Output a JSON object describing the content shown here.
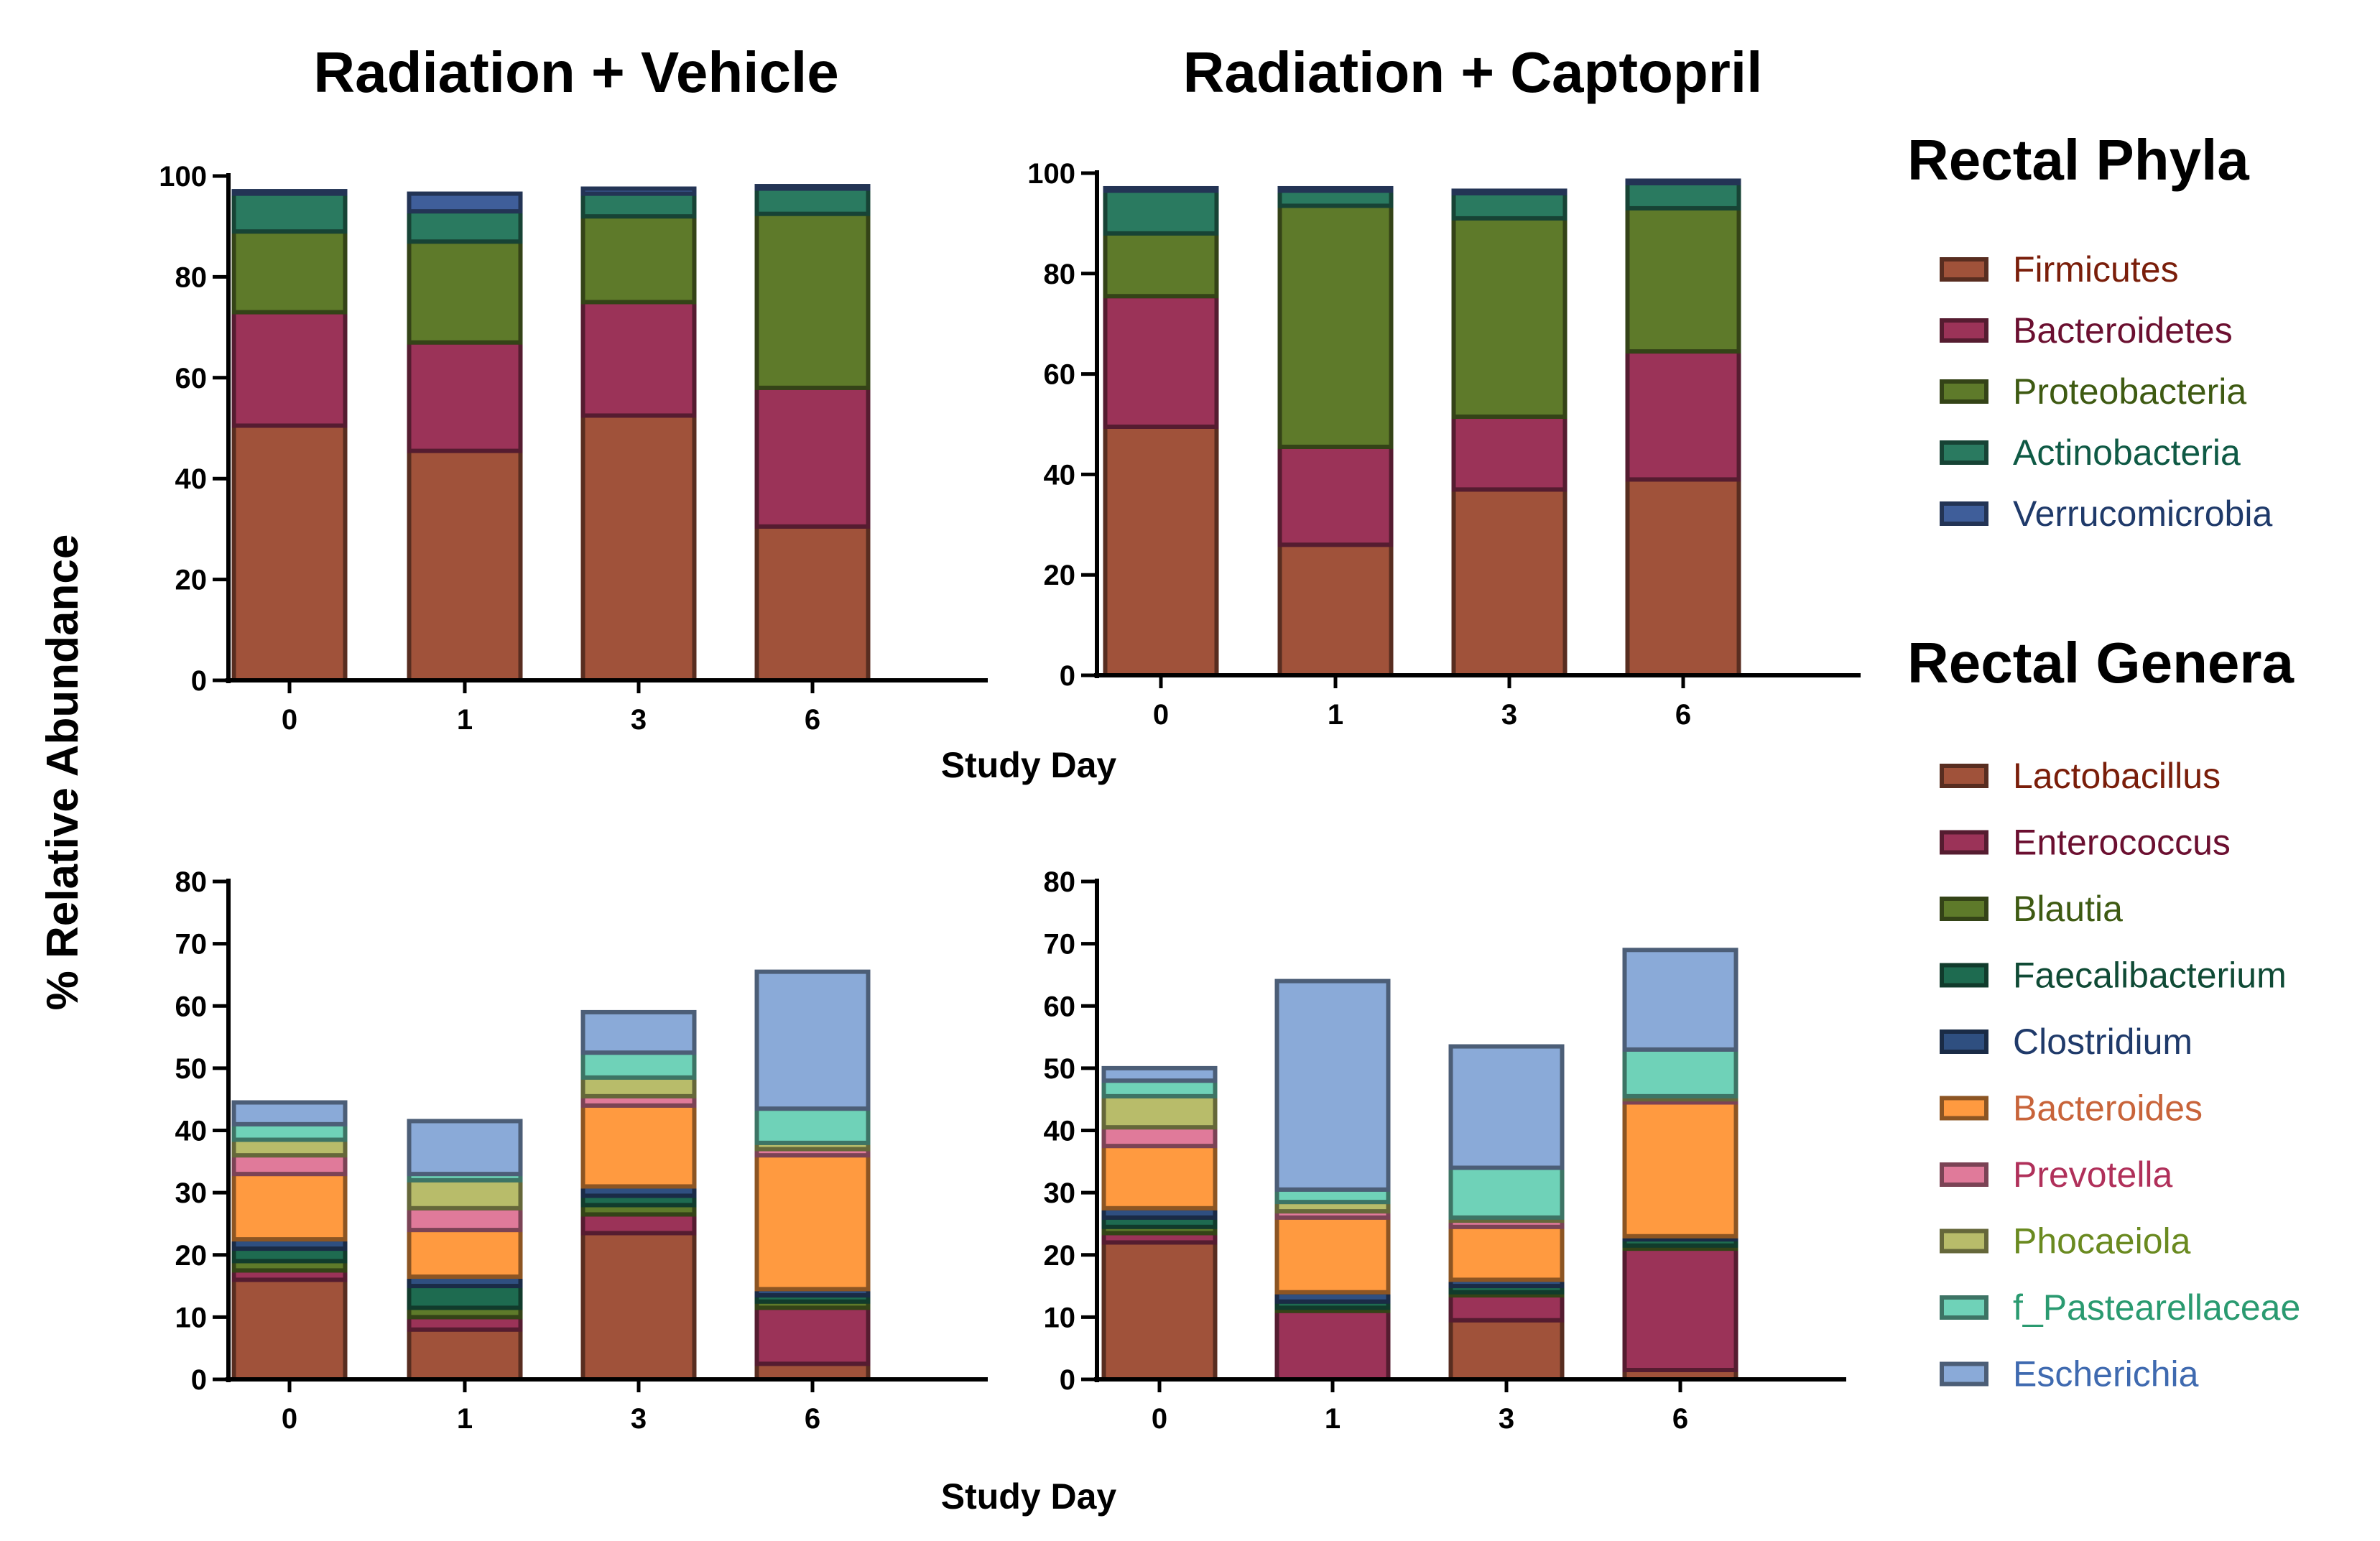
{
  "figure": {
    "y_axis_title": "% Relative Abundance",
    "x_axis_title_top": "Study Day",
    "x_axis_title_bottom": "Study Day"
  },
  "legends": {
    "phyla": {
      "title": "Rectal Phyla",
      "items": [
        {
          "name": "Firmicutes",
          "fill": "#A0523A",
          "text_color": "#7A1E0A"
        },
        {
          "name": "Bacteroidetes",
          "fill": "#9B3358",
          "text_color": "#6B0F30"
        },
        {
          "name": "Proteobacteria",
          "fill": "#5E7A2A",
          "text_color": "#3E5A12"
        },
        {
          "name": "Actinobacteria",
          "fill": "#2A7A60",
          "text_color": "#0F5A45"
        },
        {
          "name": "Verrucomicrobia",
          "fill": "#3F5E9A",
          "text_color": "#1F3A6A"
        }
      ]
    },
    "genera": {
      "title": "Rectal Genera",
      "items": [
        {
          "name": "Lactobacillus",
          "fill": "#A0523A",
          "text_color": "#7A1E0A"
        },
        {
          "name": "Enterococcus",
          "fill": "#9B3358",
          "text_color": "#6B0F30"
        },
        {
          "name": "Blautia",
          "fill": "#5E7A2A",
          "text_color": "#3E5A12"
        },
        {
          "name": "Faecalibacterium",
          "fill": "#1E6B50",
          "text_color": "#0F4A35"
        },
        {
          "name": "Clostridium",
          "fill": "#2F4F80",
          "text_color": "#1F3A6A"
        },
        {
          "name": "Bacteroides",
          "fill": "#FF9A40",
          "text_color": "#C8643A"
        },
        {
          "name": "Prevotella",
          "fill": "#E07A9A",
          "text_color": "#B0305A"
        },
        {
          "name": "Phocaeiola",
          "fill": "#B8BC6A",
          "text_color": "#6A8A20"
        },
        {
          "name": "f_Pastearellaceae",
          "fill": "#6FD2B8",
          "text_color": "#2A9A70"
        },
        {
          "name": "Escherichia",
          "fill": "#8AAAD8",
          "text_color": "#3F6AB0"
        }
      ]
    }
  },
  "chart_data": [
    {
      "type": "bar",
      "stacked": true,
      "title": "Radiation + Vehicle",
      "xlabel": "",
      "ylabel": "% Relative Abundance",
      "categories": [
        "0",
        "1",
        "3",
        "6"
      ],
      "ylim": [
        0,
        100
      ],
      "yticks": [
        "0",
        "20",
        "40",
        "60",
        "80",
        "100"
      ],
      "series": [
        {
          "name": "Firmicutes",
          "values": [
            50.5,
            45.5,
            52.5,
            30.5
          ]
        },
        {
          "name": "Bacteroidetes",
          "values": [
            22.5,
            21.5,
            22.5,
            27.5
          ]
        },
        {
          "name": "Proteobacteria",
          "values": [
            16.0,
            20.0,
            17.0,
            34.5
          ]
        },
        {
          "name": "Actinobacteria",
          "values": [
            7.5,
            6.0,
            4.5,
            5.0
          ]
        },
        {
          "name": "Verrucomicrobia",
          "values": [
            0.5,
            3.5,
            1.0,
            0.5
          ]
        }
      ]
    },
    {
      "type": "bar",
      "stacked": true,
      "title": "Radiation + Captopril",
      "xlabel": "",
      "ylabel": "",
      "categories": [
        "0",
        "1",
        "3",
        "6"
      ],
      "ylim": [
        0,
        100
      ],
      "yticks": [
        "0",
        "20",
        "40",
        "60",
        "80",
        "100"
      ],
      "series": [
        {
          "name": "Firmicutes",
          "values": [
            49.5,
            26.0,
            37.0,
            39.0
          ]
        },
        {
          "name": "Bacteroidetes",
          "values": [
            26.0,
            19.5,
            14.5,
            25.5
          ]
        },
        {
          "name": "Proteobacteria",
          "values": [
            12.5,
            48.0,
            39.5,
            28.5
          ]
        },
        {
          "name": "Actinobacteria",
          "values": [
            8.5,
            3.0,
            5.0,
            5.0
          ]
        },
        {
          "name": "Verrucomicrobia",
          "values": [
            0.5,
            0.5,
            0.5,
            0.5
          ]
        }
      ]
    },
    {
      "type": "bar",
      "stacked": true,
      "title": "",
      "xlabel": "Study Day",
      "ylabel": "% Relative Abundance",
      "categories": [
        "0",
        "1",
        "3",
        "6"
      ],
      "ylim": [
        0,
        80
      ],
      "yticks": [
        "0",
        "10",
        "20",
        "30",
        "40",
        "50",
        "60",
        "70",
        "80"
      ],
      "series": [
        {
          "name": "Lactobacillus",
          "values": [
            16.0,
            8.0,
            23.5,
            2.5
          ]
        },
        {
          "name": "Enterococcus",
          "values": [
            1.5,
            2.0,
            3.0,
            9.0
          ]
        },
        {
          "name": "Blautia",
          "values": [
            1.5,
            1.5,
            1.5,
            1.0
          ]
        },
        {
          "name": "Faecalibacterium",
          "values": [
            2.0,
            3.5,
            1.5,
            1.0
          ]
        },
        {
          "name": "Clostridium",
          "values": [
            1.5,
            1.5,
            1.5,
            1.0
          ]
        },
        {
          "name": "Bacteroides",
          "values": [
            10.5,
            7.5,
            13.0,
            21.5
          ]
        },
        {
          "name": "Prevotella",
          "values": [
            3.0,
            3.5,
            1.5,
            1.0
          ]
        },
        {
          "name": "Phocaeiola",
          "values": [
            2.5,
            4.5,
            3.0,
            1.0
          ]
        },
        {
          "name": "f_Pastearellaceae",
          "values": [
            2.5,
            1.0,
            4.0,
            5.5
          ]
        },
        {
          "name": "Escherichia",
          "values": [
            3.5,
            8.5,
            6.5,
            22.0
          ]
        }
      ]
    },
    {
      "type": "bar",
      "stacked": true,
      "title": "",
      "xlabel": "",
      "ylabel": "",
      "categories": [
        "0",
        "1",
        "3",
        "6"
      ],
      "ylim": [
        0,
        80
      ],
      "yticks": [
        "0",
        "10",
        "20",
        "30",
        "40",
        "50",
        "60",
        "70",
        "80"
      ],
      "series": [
        {
          "name": "Lactobacillus",
          "values": [
            22.0,
            0.0,
            9.5,
            1.5
          ]
        },
        {
          "name": "Enterococcus",
          "values": [
            1.5,
            11.0,
            4.0,
            19.5
          ]
        },
        {
          "name": "Blautia",
          "values": [
            1.0,
            0.5,
            0.5,
            0.5
          ]
        },
        {
          "name": "Faecalibacterium",
          "values": [
            1.5,
            1.0,
            1.0,
            1.0
          ]
        },
        {
          "name": "Clostridium",
          "values": [
            1.5,
            1.5,
            1.0,
            0.5
          ]
        },
        {
          "name": "Bacteroides",
          "values": [
            10.0,
            12.0,
            8.5,
            21.5
          ]
        },
        {
          "name": "Prevotella",
          "values": [
            3.0,
            1.0,
            1.0,
            0.5
          ]
        },
        {
          "name": "Phocaeiola",
          "values": [
            5.0,
            1.5,
            0.5,
            0.5
          ]
        },
        {
          "name": "f_Pastearellaceae",
          "values": [
            2.5,
            2.0,
            8.0,
            7.5
          ]
        },
        {
          "name": "Escherichia",
          "values": [
            2.0,
            33.5,
            19.5,
            16.0
          ]
        }
      ]
    }
  ]
}
